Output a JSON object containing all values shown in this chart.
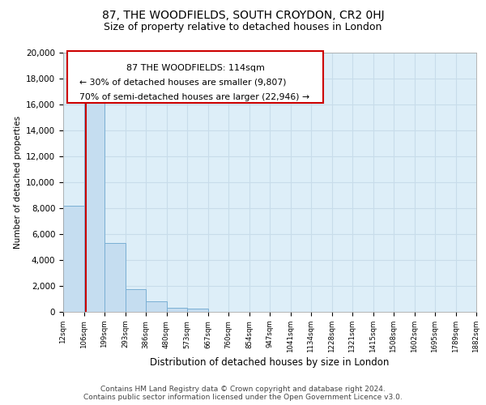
{
  "title": "87, THE WOODFIELDS, SOUTH CROYDON, CR2 0HJ",
  "subtitle": "Size of property relative to detached houses in London",
  "xlabel": "Distribution of detached houses by size in London",
  "ylabel": "Number of detached properties",
  "bar_values": [
    8200,
    16600,
    5300,
    1750,
    800,
    300,
    250,
    0,
    0,
    0,
    0,
    0,
    0,
    0,
    0,
    0,
    0,
    0,
    0,
    0
  ],
  "bar_labels": [
    "12sqm",
    "106sqm",
    "199sqm",
    "293sqm",
    "386sqm",
    "480sqm",
    "573sqm",
    "667sqm",
    "760sqm",
    "854sqm",
    "947sqm",
    "1041sqm",
    "1134sqm",
    "1228sqm",
    "1321sqm",
    "1415sqm",
    "1508sqm",
    "1602sqm",
    "1695sqm",
    "1789sqm",
    "1882sqm"
  ],
  "bar_color": "#c5ddf0",
  "bar_edge_color": "#7aafd4",
  "vline_color": "#cc0000",
  "annotation_title": "87 THE WOODFIELDS: 114sqm",
  "annotation_line1": "← 30% of detached houses are smaller (9,807)",
  "annotation_line2": "70% of semi-detached houses are larger (22,946) →",
  "annotation_box_color": "#ffffff",
  "annotation_box_edge": "#cc0000",
  "ylim": [
    0,
    20000
  ],
  "yticks": [
    0,
    2000,
    4000,
    6000,
    8000,
    10000,
    12000,
    14000,
    16000,
    18000,
    20000
  ],
  "grid_color": "#c8dcea",
  "bg_color": "#ddeef8",
  "footer_line1": "Contains HM Land Registry data © Crown copyright and database right 2024.",
  "footer_line2": "Contains public sector information licensed under the Open Government Licence v3.0.",
  "title_fontsize": 10,
  "subtitle_fontsize": 9,
  "footer_fontsize": 6.5
}
